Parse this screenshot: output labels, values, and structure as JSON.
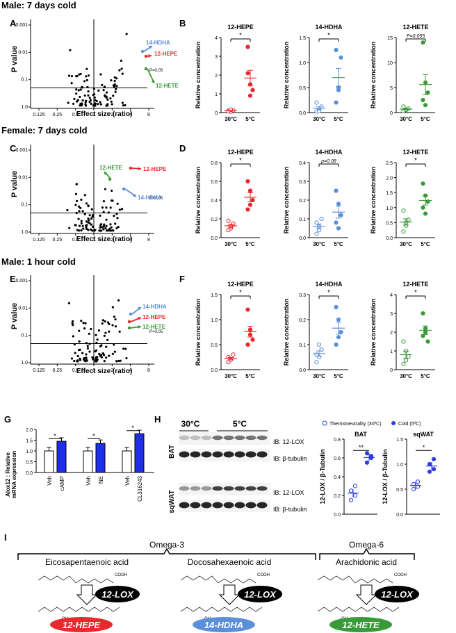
{
  "row_titles": [
    "Male: 7 days cold",
    "Female: 7 days cold",
    "Male: 1 hour cold"
  ],
  "panel_letters": [
    "A",
    "B",
    "C",
    "D",
    "E",
    "F",
    "G",
    "H",
    "I"
  ],
  "volcano": {
    "xlabel": "Effect size (ratio)",
    "ylabel": "P value",
    "xticks": [
      "0.125",
      "0.25",
      "0.5",
      "1",
      "2",
      "4",
      "8"
    ],
    "yticks": [
      "0.001",
      "0.01",
      "0.1",
      "1.0"
    ],
    "pline": "P=0.05",
    "plots": [
      {
        "labels": {
          "hdha": "14-HDHA",
          "hepe": "12-HEPE",
          "hete": "12-HETE"
        }
      },
      {
        "labels": {
          "hdha": "14-HDHA",
          "hepe": "12-HEPE",
          "hete": "12-HETE"
        }
      },
      {
        "labels": {
          "hdha": "14-HDHA",
          "hepe": "12-HEPE",
          "hete": "12-HETE"
        }
      }
    ]
  },
  "dots": {
    "ylabel": "Relative concentration",
    "xcats": [
      "30°C",
      "5°C"
    ],
    "colors": {
      "12-HEPE": "#e8292e",
      "14-HDHA": "#5b8fd9",
      "12-HETE": "#3a9a3a"
    },
    "rows": [
      [
        {
          "title": "12-HEPE",
          "ymax": 4,
          "ticks": [
            "0",
            "1",
            "2",
            "3",
            "4"
          ],
          "sig": "*",
          "g1": [
            0.1,
            0.05,
            0.12,
            0.08,
            0.15
          ],
          "g2": [
            3.5,
            1.5,
            1.2,
            2.1,
            0.9
          ]
        },
        {
          "title": "14-HDHA",
          "ymax": 1.5,
          "ticks": [
            "0.0",
            "0.5",
            "1.0",
            "1.5"
          ],
          "sig": "*",
          "g1": [
            0.02,
            0.05,
            0.12,
            0.2,
            0.03
          ],
          "g2": [
            1.25,
            0.45,
            1.1,
            0.2,
            0.5
          ]
        },
        {
          "title": "12-HETE",
          "ymax": 15,
          "ticks": [
            "0",
            "5",
            "10",
            "15"
          ],
          "sig": "P=0.055",
          "g1": [
            0.3,
            0.5,
            0.8,
            1.2,
            0.6
          ],
          "g2": [
            14,
            6,
            4,
            2.5,
            1.5
          ]
        }
      ],
      [
        {
          "title": "12-HEPE",
          "ymax": 0.8,
          "ticks": [
            "0.0",
            "0.2",
            "0.4",
            "0.6",
            "0.8"
          ],
          "sig": "*",
          "g1": [
            0.08,
            0.1,
            0.15,
            0.18,
            0.12
          ],
          "g2": [
            0.6,
            0.5,
            0.4,
            0.3,
            0.35
          ]
        },
        {
          "title": "14-HDHA",
          "ymax": 0.4,
          "ticks": [
            "0.0",
            "0.1",
            "0.2",
            "0.3",
            "0.4"
          ],
          "sig": "p=0.08",
          "g1": [
            0.02,
            0.06,
            0.1,
            0.08,
            0.04
          ],
          "g2": [
            0.25,
            0.18,
            0.12,
            0.08,
            0.05
          ]
        },
        {
          "title": "12-HETE",
          "ymax": 2.5,
          "ticks": [
            "0.0",
            "0.5",
            "1.0",
            "1.5",
            "2.0",
            "2.5"
          ],
          "sig": "*",
          "g1": [
            0.2,
            0.4,
            0.6,
            0.9,
            0.5
          ],
          "g2": [
            1.8,
            1.4,
            1.2,
            1.0,
            0.8
          ]
        }
      ],
      [
        {
          "title": "12-HEPE",
          "ymax": 1.5,
          "ticks": [
            "0.0",
            "0.5",
            "1.0",
            "1.5"
          ],
          "sig": "*",
          "g1": [
            0.15,
            0.2,
            0.3,
            0.25,
            0.2
          ],
          "g2": [
            1.2,
            0.8,
            0.6,
            0.5,
            0.7
          ]
        },
        {
          "title": "14-HDHA",
          "ymax": 0.3,
          "ticks": [
            "0.0",
            "0.1",
            "0.2",
            "0.3"
          ],
          "sig": "*",
          "g1": [
            0.03,
            0.05,
            0.08,
            0.06,
            0.1
          ],
          "g2": [
            0.25,
            0.2,
            0.15,
            0.1,
            0.13
          ]
        },
        {
          "title": "12-HETE",
          "ymax": 4,
          "ticks": [
            "0",
            "1",
            "2",
            "3",
            "4"
          ],
          "sig": "*",
          "g1": [
            0.3,
            0.5,
            0.7,
            1.5,
            1.0
          ],
          "g2": [
            3.0,
            2.0,
            1.5,
            1.8,
            2.2
          ]
        }
      ]
    ]
  },
  "panel_g": {
    "ylabel": "Alox12 : Relative\nmRNA expression",
    "yticks": [
      "0.0",
      "0.5",
      "1.0",
      "1.5",
      "2.0"
    ],
    "ymax": 2.0,
    "groups": [
      {
        "labels": [
          "Veh",
          "cAMP"
        ],
        "values": [
          1.0,
          1.45
        ],
        "sig": "*"
      },
      {
        "labels": [
          "Veh",
          "NE"
        ],
        "values": [
          1.0,
          1.35
        ],
        "sig": "*"
      },
      {
        "labels": [
          "Veh",
          "CL316243"
        ],
        "values": [
          1.0,
          1.8
        ],
        "sig": "*"
      }
    ]
  },
  "panel_h": {
    "temps": [
      "30°C",
      "5°C"
    ],
    "tissues": [
      "BAT",
      "sqWAT"
    ],
    "blot_labels": [
      "IB: 12-LOX",
      "IB: β-tubulin",
      "IB: 12-LOX",
      "IB: β-tubulin"
    ],
    "legend": [
      "Thermoneutrality (30ºC)",
      "Cold (5ºC)"
    ],
    "ylabel": "12-LOX / β-Tubulin",
    "charts": [
      {
        "title": "BAT",
        "ymax": 0.8,
        "ticks": [
          "0.0",
          "0.2",
          "0.4",
          "0.6",
          "0.8"
        ],
        "sig": "**",
        "g1": [
          0.15,
          0.2,
          0.25,
          0.3
        ],
        "g2": [
          0.55,
          0.6,
          0.65,
          0.62
        ]
      },
      {
        "title": "sqWAT",
        "ymax": 1.5,
        "ticks": [
          "0.0",
          "0.5",
          "1.0",
          "1.5"
        ],
        "sig": "*",
        "g1": [
          0.5,
          0.55,
          0.6,
          0.65
        ],
        "g2": [
          0.85,
          0.9,
          1.0,
          1.1
        ]
      }
    ]
  },
  "panel_i": {
    "groups": [
      "Omega-3",
      "Omega-6"
    ],
    "acids": [
      "Eicosapentaenoic acid",
      "Docosahexaenoic acid",
      "Arachidonic acid"
    ],
    "enzyme": "12-LOX",
    "products": [
      "12-HEPE",
      "14-HDHA",
      "12-HETE"
    ],
    "cooh": "COOH",
    "oh": "OH"
  }
}
